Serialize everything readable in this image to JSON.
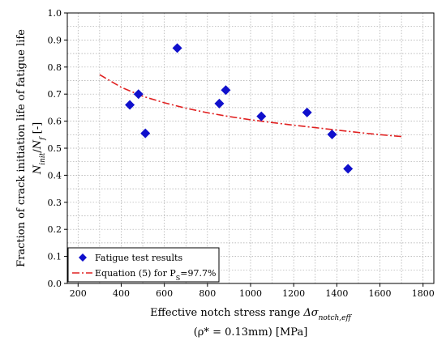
{
  "chart_data": {
    "type": "scatter",
    "xlabel": {
      "main": "Effective notch stress range ",
      "symbol": "Δσ",
      "subscript": "notch,eff",
      "line2": "(ρ* = 0.13mm) [MPa]"
    },
    "ylabel": {
      "line1": "Fraction of crack initiation life of fatigue life",
      "n_init": "N",
      "n_init_sub": "init",
      "slash": "/",
      "n_f": "N",
      "n_f_sub": "f",
      "unit": " [-]"
    },
    "xlim": [
      150,
      1850
    ],
    "ylim": [
      0.0,
      1.0
    ],
    "xticks": [
      200,
      400,
      600,
      800,
      1000,
      1200,
      1400,
      1600,
      1800
    ],
    "yticks": [
      0.0,
      0.1,
      0.2,
      0.3,
      0.4,
      0.5,
      0.6,
      0.7,
      0.8,
      0.9,
      1.0
    ],
    "ytick_labels": [
      "0.0",
      "0.1",
      "0.2",
      "0.3",
      "0.4",
      "0.5",
      "0.6",
      "0.7",
      "0.8",
      "0.9",
      "1.0"
    ],
    "grid": true,
    "legend_position": "bottom-left",
    "series": [
      {
        "name": "Fatigue test results",
        "kind": "scatter",
        "marker": "diamond",
        "color": "#1010cc",
        "points": [
          {
            "x": 440,
            "y": 0.66
          },
          {
            "x": 480,
            "y": 0.7
          },
          {
            "x": 512,
            "y": 0.555
          },
          {
            "x": 660,
            "y": 0.87
          },
          {
            "x": 855,
            "y": 0.665
          },
          {
            "x": 885,
            "y": 0.715
          },
          {
            "x": 1050,
            "y": 0.618
          },
          {
            "x": 1262,
            "y": 0.632
          },
          {
            "x": 1378,
            "y": 0.551
          },
          {
            "x": 1452,
            "y": 0.424
          }
        ]
      },
      {
        "name_prefix": "Equation (5) for P",
        "name_sub": "S",
        "name_suffix": "=97.7%",
        "kind": "line",
        "dash": "dash-dot",
        "color": "#e02020",
        "points": [
          {
            "x": 300,
            "y": 0.772
          },
          {
            "x": 400,
            "y": 0.725
          },
          {
            "x": 500,
            "y": 0.692
          },
          {
            "x": 600,
            "y": 0.668
          },
          {
            "x": 700,
            "y": 0.648
          },
          {
            "x": 800,
            "y": 0.631
          },
          {
            "x": 900,
            "y": 0.617
          },
          {
            "x": 1000,
            "y": 0.605
          },
          {
            "x": 1100,
            "y": 0.595
          },
          {
            "x": 1200,
            "y": 0.585
          },
          {
            "x": 1300,
            "y": 0.576
          },
          {
            "x": 1400,
            "y": 0.567
          },
          {
            "x": 1500,
            "y": 0.558
          },
          {
            "x": 1600,
            "y": 0.55
          },
          {
            "x": 1700,
            "y": 0.543
          }
        ]
      }
    ]
  }
}
